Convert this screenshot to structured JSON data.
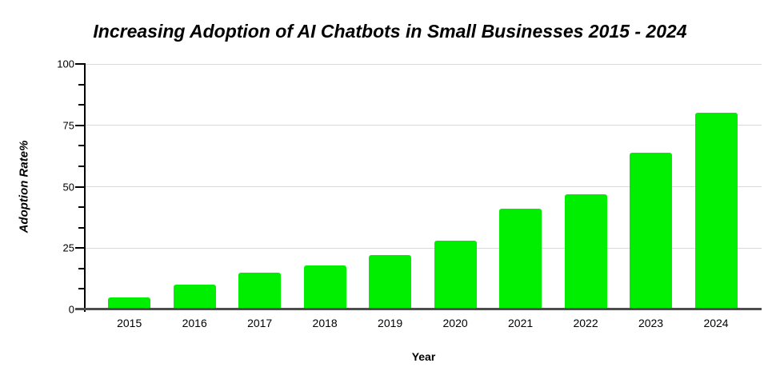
{
  "chart_data": {
    "type": "bar",
    "title": "Increasing Adoption of AI Chatbots in Small Businesses 2015 - 2024",
    "xlabel": "Year",
    "ylabel": "Adoption Rate%",
    "categories": [
      "2015",
      "2016",
      "2017",
      "2018",
      "2019",
      "2020",
      "2021",
      "2022",
      "2023",
      "2024"
    ],
    "values": [
      5,
      10,
      15,
      18,
      22,
      28,
      41,
      47,
      64,
      80
    ],
    "ylim": [
      0,
      100
    ],
    "yticks": [
      0,
      25,
      50,
      75,
      100
    ],
    "minor_ticks_per_interval": 2,
    "grid": "horizontal-major",
    "legend": "none",
    "colors": {
      "bar": "#00EE00",
      "gridline": "#D9D9D9",
      "axis": "#000000",
      "baseline": "#4D4D4D",
      "text": "#000000",
      "background": "#FFFFFF"
    }
  }
}
